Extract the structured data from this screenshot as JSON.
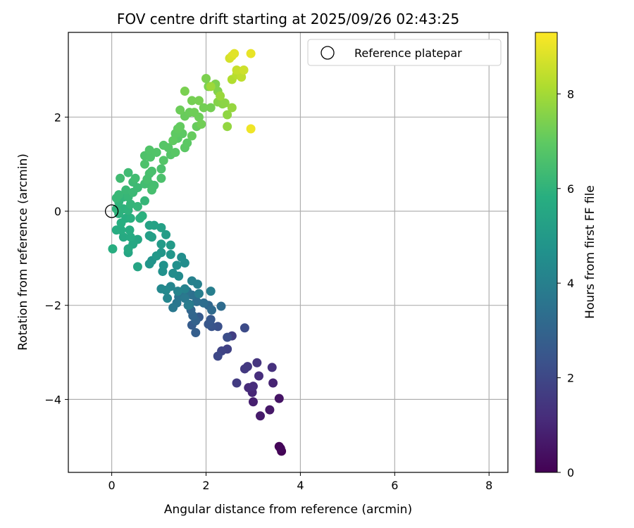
{
  "chart_data": {
    "type": "scatter",
    "title": "FOV centre drift starting at 2025/09/26 02:43:25",
    "xlabel": "Angular distance from reference (arcmin)",
    "ylabel": "Rotation from reference (arcmin)",
    "xlim": [
      -0.92,
      8.4
    ],
    "ylim": [
      -5.55,
      3.8
    ],
    "xticks": [
      0,
      2,
      4,
      6,
      8
    ],
    "yticks": [
      -4,
      -2,
      0,
      2
    ],
    "grid": true,
    "legend": {
      "position": "top-right",
      "entries": [
        "Reference platepar"
      ]
    },
    "reference_point": {
      "x": 0,
      "y": 0,
      "marker": "open-circle"
    },
    "colorbar": {
      "label": "Hours from first FF file",
      "colormap": "viridis",
      "range": [
        0,
        9.3
      ],
      "ticks": [
        0,
        2,
        4,
        6,
        8
      ]
    },
    "series": [
      {
        "points": [
          [
            3.6,
            -5.1,
            0.05
          ],
          [
            3.55,
            -5.0,
            0.1
          ],
          [
            3.58,
            -5.04,
            0.15
          ],
          [
            3.55,
            -3.98,
            0.5
          ],
          [
            3.35,
            -4.22,
            0.6
          ],
          [
            3.15,
            -4.35,
            0.7
          ],
          [
            3.0,
            -4.05,
            0.8
          ],
          [
            3.42,
            -3.65,
            0.9
          ],
          [
            2.98,
            -3.85,
            1.0
          ],
          [
            2.9,
            -3.75,
            1.1
          ],
          [
            3.0,
            -3.72,
            1.15
          ],
          [
            3.12,
            -3.5,
            1.2
          ],
          [
            3.4,
            -3.32,
            1.3
          ],
          [
            3.08,
            -3.22,
            1.4
          ],
          [
            2.88,
            -3.3,
            1.5
          ],
          [
            2.82,
            -3.35,
            1.55
          ],
          [
            2.65,
            -3.65,
            1.6
          ],
          [
            2.55,
            -2.65,
            1.7
          ],
          [
            2.45,
            -2.93,
            1.8
          ],
          [
            2.33,
            -2.97,
            1.9
          ],
          [
            2.25,
            -3.08,
            2.0
          ],
          [
            2.82,
            -2.48,
            2.1
          ],
          [
            2.45,
            -2.68,
            2.2
          ],
          [
            2.25,
            -2.45,
            2.3
          ],
          [
            2.12,
            -2.45,
            2.4
          ],
          [
            2.05,
            -2.4,
            2.5
          ],
          [
            2.1,
            -2.3,
            2.55
          ],
          [
            1.85,
            -2.25,
            2.6
          ],
          [
            1.7,
            -2.42,
            2.7
          ],
          [
            1.78,
            -2.58,
            2.8
          ],
          [
            1.78,
            -2.33,
            2.9
          ],
          [
            1.72,
            -2.22,
            3.0
          ],
          [
            1.68,
            -2.1,
            3.05
          ],
          [
            2.05,
            -2.0,
            3.1
          ],
          [
            2.12,
            -2.1,
            3.2
          ],
          [
            2.32,
            -2.02,
            3.25
          ],
          [
            1.95,
            -1.95,
            3.3
          ],
          [
            1.8,
            -1.92,
            3.35
          ],
          [
            1.7,
            -1.78,
            3.4
          ],
          [
            1.6,
            -1.7,
            3.5
          ],
          [
            1.5,
            -1.78,
            3.55
          ],
          [
            1.42,
            -1.82,
            3.6
          ],
          [
            1.38,
            -1.95,
            3.65
          ],
          [
            1.3,
            -2.05,
            3.7
          ],
          [
            1.55,
            -1.85,
            3.75
          ],
          [
            1.65,
            -1.98,
            3.8
          ],
          [
            1.62,
            -2.0,
            3.85
          ],
          [
            1.85,
            -1.75,
            3.9
          ],
          [
            2.1,
            -1.7,
            3.95
          ],
          [
            1.82,
            -1.55,
            4.0
          ],
          [
            1.7,
            -1.48,
            4.05
          ],
          [
            1.55,
            -1.65,
            4.1
          ],
          [
            1.4,
            -1.7,
            4.15
          ],
          [
            1.25,
            -1.6,
            4.2
          ],
          [
            1.18,
            -1.85,
            4.25
          ],
          [
            1.05,
            -1.65,
            4.3
          ],
          [
            1.15,
            -1.68,
            4.35
          ],
          [
            1.42,
            -1.38,
            4.4
          ],
          [
            1.3,
            -1.32,
            4.45
          ],
          [
            1.55,
            -1.1,
            4.5
          ],
          [
            1.48,
            -0.98,
            4.55
          ],
          [
            1.38,
            -1.15,
            4.6
          ],
          [
            1.08,
            -1.28,
            4.65
          ],
          [
            1.1,
            -1.15,
            4.7
          ],
          [
            0.85,
            -1.05,
            4.75
          ],
          [
            0.8,
            -1.12,
            4.8
          ],
          [
            1.25,
            -0.92,
            4.85
          ],
          [
            1.05,
            -0.88,
            4.9
          ],
          [
            0.95,
            -0.95,
            4.95
          ],
          [
            1.25,
            -0.72,
            5.0
          ],
          [
            1.05,
            -0.7,
            5.05
          ],
          [
            1.15,
            -0.5,
            5.1
          ],
          [
            0.8,
            -0.52,
            5.15
          ],
          [
            0.85,
            -0.55,
            5.2
          ],
          [
            1.05,
            -0.35,
            5.25
          ],
          [
            0.9,
            -0.3,
            5.3
          ],
          [
            0.8,
            -0.3,
            5.35
          ],
          [
            0.55,
            -1.18,
            5.4
          ],
          [
            0.35,
            -0.88,
            5.45
          ],
          [
            0.55,
            -0.6,
            5.5
          ],
          [
            0.45,
            -0.7,
            5.55
          ],
          [
            0.35,
            -0.8,
            5.6
          ],
          [
            0.25,
            -0.55,
            5.62
          ],
          [
            0.4,
            -0.55,
            5.65
          ],
          [
            0.38,
            -0.4,
            5.7
          ],
          [
            0.2,
            -0.4,
            5.72
          ],
          [
            0.1,
            -0.4,
            5.75
          ],
          [
            0.02,
            -0.8,
            5.78
          ],
          [
            0.2,
            -0.25,
            5.8
          ],
          [
            0.3,
            -0.15,
            5.82
          ],
          [
            0.4,
            -0.15,
            5.85
          ],
          [
            0.6,
            -0.15,
            5.88
          ],
          [
            0.65,
            -0.1,
            5.9
          ],
          [
            0.15,
            -0.05,
            5.92
          ],
          [
            0.25,
            0.05,
            5.95
          ],
          [
            0.35,
            0.02,
            5.97
          ],
          [
            0.1,
            0.05,
            6.0
          ],
          [
            0.15,
            0.2,
            6.02
          ],
          [
            0.25,
            0.3,
            6.05
          ],
          [
            0.4,
            0.15,
            6.08
          ],
          [
            0.55,
            0.1,
            6.1
          ],
          [
            0.7,
            0.22,
            6.12
          ],
          [
            0.35,
            0.3,
            6.15
          ],
          [
            0.1,
            0.28,
            6.18
          ],
          [
            0.15,
            0.35,
            6.2
          ],
          [
            0.3,
            0.45,
            6.22
          ],
          [
            0.45,
            0.4,
            6.25
          ],
          [
            0.55,
            0.5,
            6.28
          ],
          [
            0.45,
            0.62,
            6.3
          ],
          [
            0.35,
            0.82,
            6.32
          ],
          [
            0.18,
            0.7,
            6.35
          ],
          [
            0.5,
            0.7,
            6.38
          ],
          [
            0.7,
            0.58,
            6.4
          ],
          [
            0.8,
            0.58,
            6.42
          ],
          [
            0.9,
            0.55,
            6.45
          ],
          [
            0.85,
            0.45,
            6.48
          ],
          [
            0.75,
            0.68,
            6.5
          ],
          [
            0.8,
            0.8,
            6.52
          ],
          [
            0.85,
            0.85,
            6.55
          ],
          [
            1.05,
            0.7,
            6.58
          ],
          [
            1.05,
            0.9,
            6.6
          ],
          [
            0.7,
            1.0,
            6.62
          ],
          [
            0.7,
            1.18,
            6.65
          ],
          [
            0.82,
            1.15,
            6.68
          ],
          [
            0.8,
            1.3,
            6.7
          ],
          [
            0.95,
            1.25,
            6.72
          ],
          [
            1.1,
            1.08,
            6.75
          ],
          [
            1.25,
            1.2,
            6.78
          ],
          [
            1.1,
            1.4,
            6.8
          ],
          [
            1.2,
            1.35,
            6.82
          ],
          [
            1.35,
            1.25,
            6.85
          ],
          [
            1.4,
            1.55,
            6.88
          ],
          [
            1.55,
            1.35,
            6.9
          ],
          [
            1.6,
            1.45,
            6.92
          ],
          [
            1.5,
            1.65,
            6.95
          ],
          [
            1.35,
            1.65,
            6.98
          ],
          [
            1.3,
            1.5,
            7.0
          ],
          [
            1.4,
            1.75,
            7.02
          ],
          [
            1.45,
            1.8,
            7.05
          ],
          [
            1.7,
            1.6,
            7.08
          ],
          [
            1.8,
            1.8,
            7.1
          ],
          [
            1.55,
            2.02,
            7.12
          ],
          [
            1.65,
            2.1,
            7.15
          ],
          [
            1.45,
            2.15,
            7.18
          ],
          [
            1.85,
            2.0,
            7.2
          ],
          [
            1.75,
            2.1,
            7.22
          ],
          [
            1.9,
            1.85,
            7.25
          ],
          [
            1.95,
            2.2,
            7.28
          ],
          [
            2.1,
            2.2,
            7.3
          ],
          [
            1.7,
            2.35,
            7.32
          ],
          [
            1.85,
            2.35,
            7.35
          ],
          [
            1.55,
            2.55,
            7.38
          ],
          [
            2.05,
            2.65,
            7.4
          ],
          [
            2.0,
            2.82,
            7.42
          ],
          [
            2.2,
            2.7,
            7.45
          ],
          [
            2.25,
            2.55,
            7.5
          ],
          [
            2.25,
            2.32,
            7.55
          ],
          [
            2.35,
            2.28,
            7.6
          ],
          [
            2.4,
            2.3,
            7.65
          ],
          [
            2.45,
            2.05,
            7.7
          ],
          [
            2.45,
            1.8,
            7.75
          ],
          [
            2.55,
            2.2,
            7.8
          ],
          [
            2.3,
            2.45,
            7.85
          ],
          [
            2.1,
            2.65,
            7.9
          ],
          [
            2.55,
            2.8,
            8.2
          ],
          [
            2.65,
            2.9,
            8.3
          ],
          [
            2.75,
            2.85,
            8.4
          ],
          [
            2.65,
            3.0,
            8.5
          ],
          [
            2.8,
            3.0,
            8.6
          ],
          [
            2.5,
            3.25,
            8.7
          ],
          [
            2.55,
            3.3,
            8.8
          ],
          [
            2.6,
            3.35,
            8.9
          ],
          [
            2.95,
            3.35,
            9.0
          ],
          [
            2.95,
            1.75,
            9.1
          ]
        ]
      }
    ]
  }
}
